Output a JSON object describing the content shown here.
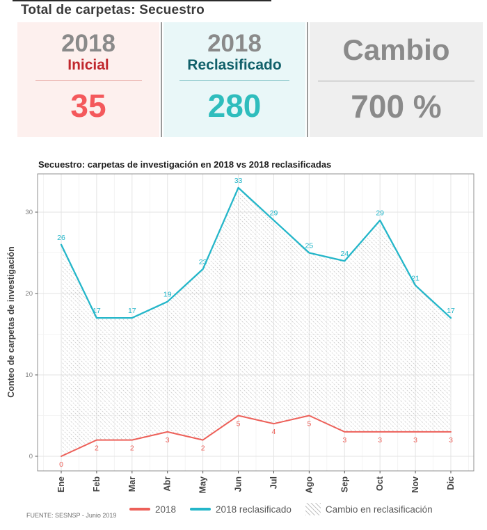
{
  "header": {
    "title": "Total de carpetas: Secuestro"
  },
  "cards": {
    "inicial": {
      "year": "2018",
      "label": "Inicial",
      "value": "35"
    },
    "reclasificado": {
      "year": "2018",
      "label": "Reclasificado",
      "value": "280"
    },
    "cambio": {
      "label": "Cambio",
      "value": "700 %"
    }
  },
  "chart_data": {
    "type": "line",
    "title": "Secuestro: carpetas de investigación en 2018 vs 2018 reclasificadas",
    "ylabel": "Conteo de carpetas de investigación",
    "xlabel": "",
    "categories": [
      "Ene",
      "Feb",
      "Mar",
      "Abr",
      "May",
      "Jun",
      "Jul",
      "Ago",
      "Sep",
      "Oct",
      "Nov",
      "Dic"
    ],
    "series": [
      {
        "name": "2018",
        "color": "#ed6059",
        "values": [
          0,
          2,
          2,
          3,
          2,
          5,
          4,
          5,
          3,
          3,
          3,
          3
        ]
      },
      {
        "name": "2018 reclasificado",
        "color": "#24b6c9",
        "values": [
          26,
          17,
          17,
          19,
          23,
          33,
          29,
          25,
          24,
          29,
          21,
          17
        ]
      }
    ],
    "ribbon": {
      "name": "Cambio en reclasificación",
      "between": [
        "2018",
        "2018 reclasificado"
      ],
      "pattern": "diagonal-hatch"
    },
    "yticks": [
      0,
      10,
      20,
      30
    ],
    "yticks_minor": [
      5,
      15,
      25
    ],
    "ylim": [
      0,
      34.7
    ],
    "grid": true,
    "legend_position": "bottom"
  },
  "legend": {
    "items": [
      {
        "label": "2018",
        "swatch": "line",
        "color": "#ed6059"
      },
      {
        "label": "2018 reclasificado",
        "swatch": "line",
        "color": "#24b6c9"
      },
      {
        "label": "Cambio en reclasificación",
        "swatch": "hatch"
      }
    ]
  },
  "footer": {
    "source": "FUENTE: SESNSP - Junio 2019"
  }
}
